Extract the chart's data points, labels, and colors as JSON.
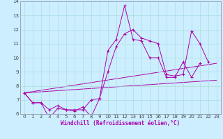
{
  "xlabel": "Windchill (Refroidissement éolien,°C)",
  "bg_color": "#cceeff",
  "grid_color": "#aadddd",
  "line_color": "#aa00aa",
  "spine_color": "#8888aa",
  "xlim": [
    -0.5,
    23.5
  ],
  "ylim": [
    6,
    14
  ],
  "yticks": [
    6,
    7,
    8,
    9,
    10,
    11,
    12,
    13,
    14
  ],
  "xticks": [
    0,
    1,
    2,
    3,
    4,
    5,
    6,
    7,
    8,
    9,
    10,
    11,
    12,
    13,
    14,
    15,
    16,
    17,
    18,
    19,
    20,
    21,
    22,
    23
  ],
  "series_main": [
    {
      "x": [
        0,
        1,
        2,
        3,
        4,
        5,
        6,
        7,
        8,
        9,
        10,
        11,
        12,
        13,
        14,
        15,
        16,
        17,
        18,
        19,
        20,
        21
      ],
      "y": [
        7.5,
        6.8,
        6.8,
        5.7,
        6.4,
        6.3,
        6.2,
        6.5,
        5.8,
        7.1,
        10.5,
        11.3,
        13.7,
        11.3,
        11.2,
        10.0,
        10.0,
        8.6,
        8.6,
        9.7,
        8.6,
        9.6
      ]
    },
    {
      "x": [
        0,
        1,
        2,
        3,
        4,
        5,
        6,
        7,
        8,
        9,
        10,
        11,
        12,
        13,
        14,
        15,
        16,
        17,
        18,
        19,
        20,
        21,
        22
      ],
      "y": [
        7.5,
        6.8,
        6.8,
        6.3,
        6.6,
        6.3,
        6.3,
        6.3,
        7.0,
        7.1,
        9.0,
        10.8,
        11.7,
        12.0,
        11.4,
        11.2,
        11.0,
        8.8,
        8.7,
        8.8,
        11.9,
        11.0,
        9.7
      ]
    }
  ],
  "series_lines": [
    {
      "x": [
        0,
        23
      ],
      "y": [
        7.5,
        8.4
      ]
    },
    {
      "x": [
        0,
        23
      ],
      "y": [
        7.5,
        9.6
      ]
    }
  ]
}
